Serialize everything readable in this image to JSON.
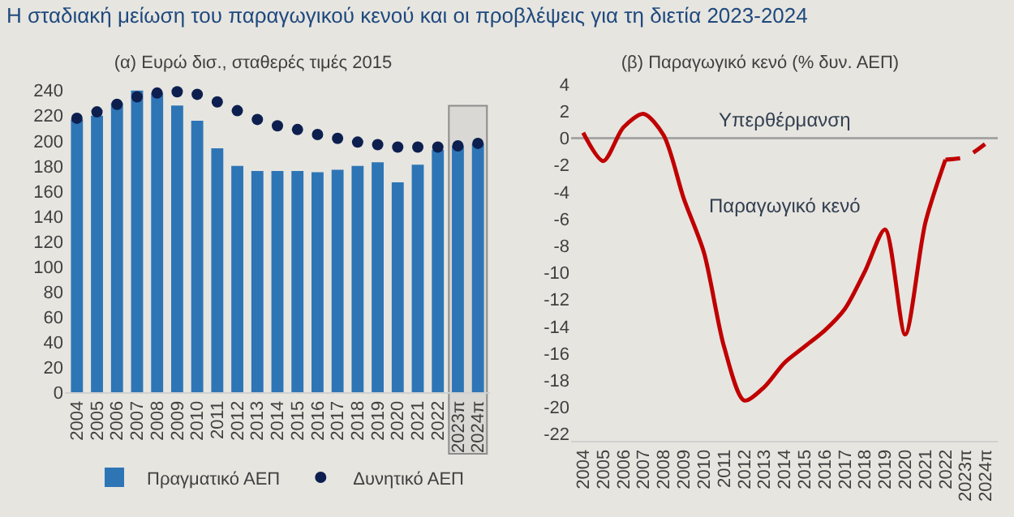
{
  "chart_data": [
    {
      "type": "bar",
      "title": "Η σταδιακή μείωση του παραγωγικού κενού και οι προβλέψεις για τη διετία 2023-2024",
      "subtitle": "(α) Ευρώ δισ., σταθερές τιμές 2015",
      "categories": [
        "2004",
        "2005",
        "2006",
        "2007",
        "2008",
        "2009",
        "2010",
        "2011",
        "2012",
        "2013",
        "2014",
        "2015",
        "2016",
        "2017",
        "2018",
        "2019",
        "2020",
        "2021",
        "2022",
        "2023π",
        "2024π"
      ],
      "series": [
        {
          "name": "Πραγματικό ΑΕΠ",
          "color": "#2e75b6",
          "values": [
            217,
            220,
            230,
            240,
            238,
            228,
            216,
            194,
            180,
            176,
            176,
            176,
            175,
            177,
            180,
            183,
            167,
            181,
            193,
            196,
            198
          ]
        },
        {
          "name": "Δυνητικό ΑΕΠ",
          "type": "scatter",
          "color": "#0d1f4f",
          "values": [
            218,
            223,
            229,
            235,
            238,
            239,
            237,
            231,
            224,
            217,
            212,
            209,
            205,
            202,
            199,
            197,
            195,
            195,
            195,
            196,
            198
          ]
        }
      ],
      "ylim": [
        0,
        245
      ],
      "yticks": [
        0,
        20,
        40,
        60,
        80,
        100,
        120,
        140,
        160,
        180,
        200,
        220,
        240
      ],
      "grid": false,
      "legend": "bottom",
      "marker": "circle",
      "bands": [
        {
          "axis": "x",
          "from": "2023π",
          "to": "2024π",
          "color": "#d9d8d4"
        }
      ]
    },
    {
      "type": "line",
      "title": "(β) Παραγωγικό κενό (% δυν. ΑΕΠ)",
      "categories": [
        "2004",
        "2005",
        "2006",
        "2007",
        "2008",
        "2009",
        "2010",
        "2011",
        "2012",
        "2013",
        "2014",
        "2015",
        "2016",
        "2017",
        "2018",
        "2019",
        "2020",
        "2021",
        "2022",
        "2023π",
        "2024π"
      ],
      "series": [
        {
          "color": "#c00000",
          "line_style": "solid",
          "values": [
            0.4,
            -1.7,
            0.8,
            1.8,
            0.2,
            -4.5,
            -8.5,
            -15.5,
            -19.5,
            -18.5,
            -16.7,
            -15.5,
            -14.3,
            -12.7,
            -9.9,
            -6.8,
            -14.6,
            -6.3,
            -1.6,
            null,
            null
          ]
        },
        {
          "color": "#c00000",
          "line_style": "dashed",
          "values": [
            null,
            null,
            null,
            null,
            null,
            null,
            null,
            null,
            null,
            null,
            null,
            null,
            null,
            null,
            null,
            null,
            null,
            null,
            -1.6,
            -1.4,
            -0.4
          ]
        }
      ],
      "ylim": [
        -22.5,
        4
      ],
      "yticks": [
        -22,
        -20,
        -18,
        -16,
        -14,
        -12,
        -10,
        -8,
        -6,
        -4,
        -2,
        0,
        2,
        4
      ],
      "grid": false,
      "legend": false,
      "marker": "none",
      "ref_lines": [
        {
          "axis": "y",
          "value": 0,
          "color": "#a6a6a6"
        }
      ],
      "annotations": [
        "Υπερθέρμανση",
        "Παραγωγικό κενό"
      ]
    }
  ]
}
